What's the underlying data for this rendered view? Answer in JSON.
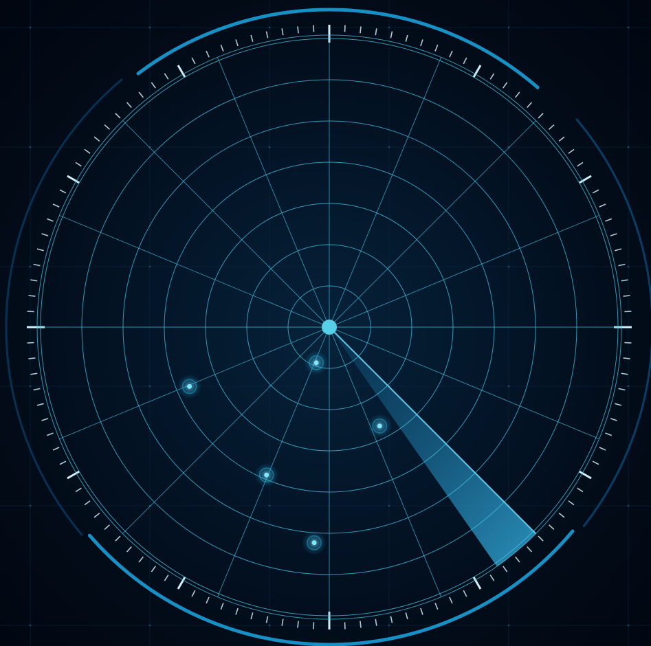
{
  "radar": {
    "colors": {
      "background": "#010812",
      "grid": "#46c6e6",
      "ticks": "#cfeff8",
      "accent_arc": "#1aa0d8",
      "sweep": "#2aa8e0",
      "blip": "#7fe6ff"
    },
    "ring_count": 8,
    "spoke_count": 16,
    "sweep_bearing_start_deg": 135,
    "sweep_bearing_end_deg": 145,
    "blips": [
      {
        "range_fraction": 0.13,
        "bearing_deg": 200,
        "icon": "contact-blip"
      },
      {
        "range_fraction": 0.52,
        "bearing_deg": 247,
        "icon": "contact-blip"
      },
      {
        "range_fraction": 0.38,
        "bearing_deg": 153,
        "icon": "contact-blip"
      },
      {
        "range_fraction": 0.55,
        "bearing_deg": 203,
        "icon": "contact-blip"
      },
      {
        "range_fraction": 0.74,
        "bearing_deg": 184,
        "icon": "contact-blip"
      }
    ]
  }
}
